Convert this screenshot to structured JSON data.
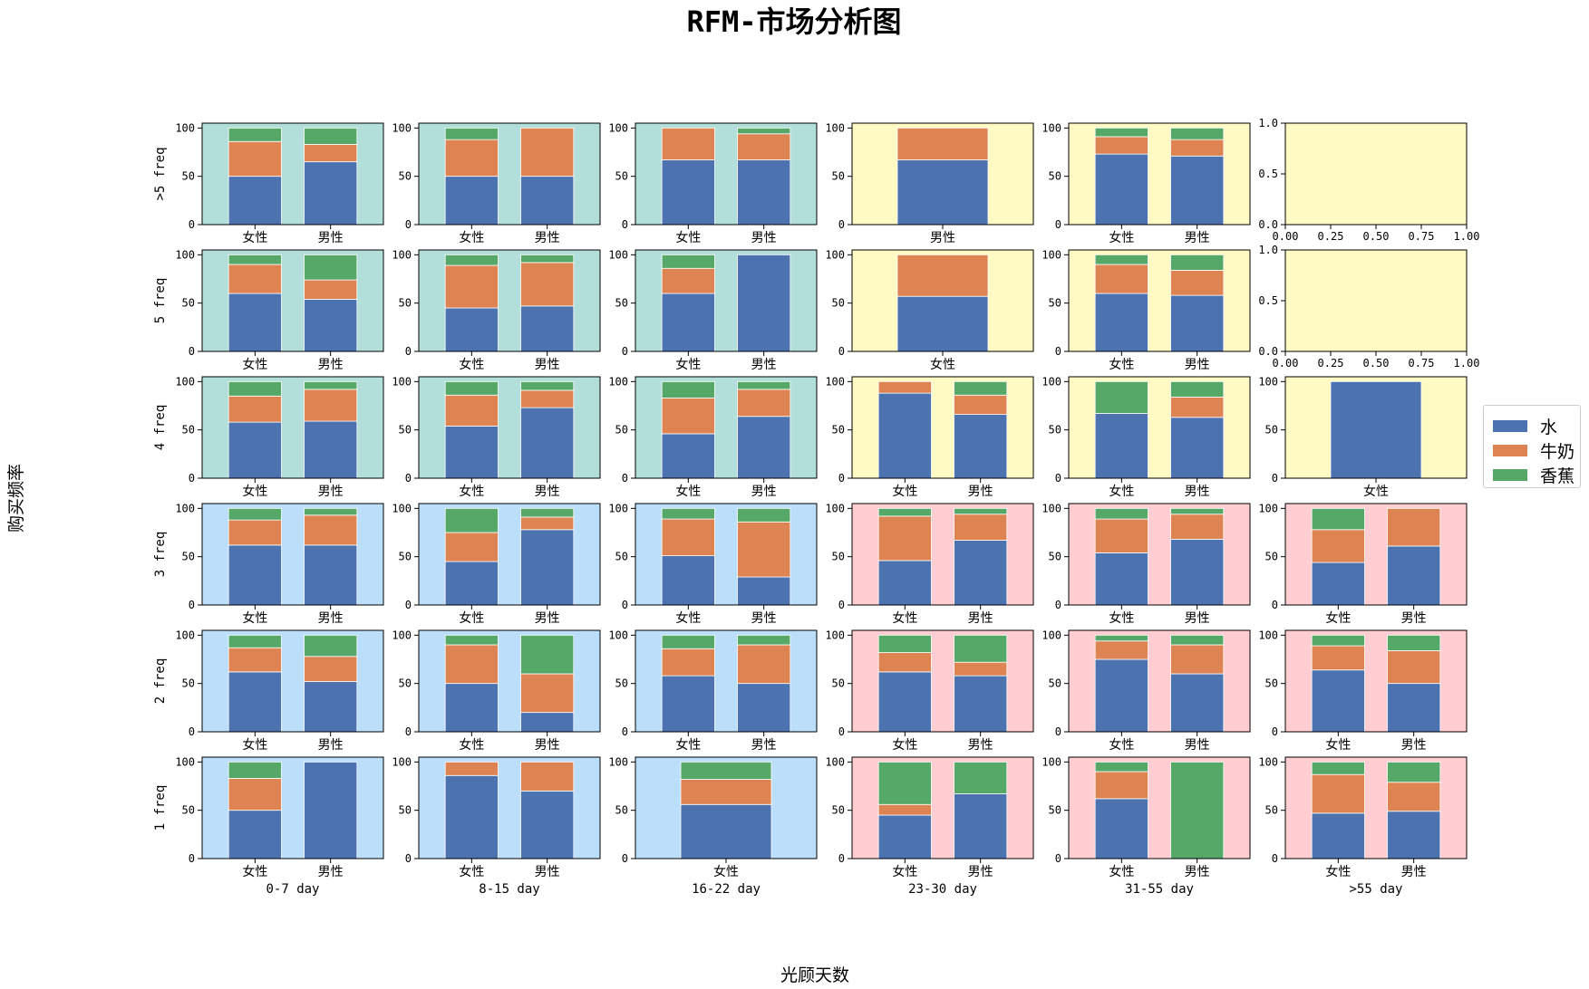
{
  "chart_data": {
    "type": "bar",
    "stacked": true,
    "title": "RFM-市场分析图",
    "xlabel": "光顾天数",
    "ylabel": "购买频率",
    "grid": false,
    "legend_position": "right",
    "series": [
      {
        "name": "水",
        "color": "#4c72b0"
      },
      {
        "name": "牛奶",
        "color": "#dd8452"
      },
      {
        "name": "香蕉",
        "color": "#55a868"
      }
    ],
    "recency_groups": [
      "0-7 day",
      "8-15 day",
      "16-22 day",
      "23-30 day",
      "31-55 day",
      ">55 day"
    ],
    "frequency_groups": [
      ">5 freq",
      "5 freq",
      "4 freq",
      "3 freq",
      "2 freq",
      "1 freq"
    ],
    "ylim": [
      0,
      105
    ],
    "yticks": [
      "0",
      "50",
      "100"
    ],
    "empty_ylim": [
      0,
      1
    ],
    "empty_yticks": [
      "0.0",
      "0.5",
      "1.0"
    ],
    "empty_xticks": [
      "0.00",
      "0.25",
      "0.50",
      "0.75",
      "1.00"
    ],
    "panel_colors": {
      "teal": "#b3dfdb",
      "yellow": "#fff9c4",
      "blue": "#bbdefb",
      "pink": "#ffcdd2"
    },
    "panels": [
      [
        {
          "bg": "teal",
          "bars": [
            {
              "label": "女性",
              "values": [
                50,
                36,
                14
              ]
            },
            {
              "label": "男性",
              "values": [
                65,
                18,
                17
              ]
            }
          ]
        },
        {
          "bg": "teal",
          "bars": [
            {
              "label": "女性",
              "values": [
                50,
                38,
                12
              ]
            },
            {
              "label": "男性",
              "values": [
                50,
                50,
                0
              ]
            }
          ]
        },
        {
          "bg": "teal",
          "bars": [
            {
              "label": "女性",
              "values": [
                67,
                33,
                0
              ]
            },
            {
              "label": "男性",
              "values": [
                67,
                27,
                6
              ]
            }
          ]
        },
        {
          "bg": "yellow",
          "bars": [
            {
              "label": "男性",
              "values": [
                67,
                33,
                0
              ]
            }
          ]
        },
        {
          "bg": "yellow",
          "bars": [
            {
              "label": "女性",
              "values": [
                73,
                18,
                9
              ]
            },
            {
              "label": "男性",
              "values": [
                71,
                17,
                12
              ]
            }
          ]
        },
        {
          "bg": "yellow",
          "empty": true,
          "bars": []
        }
      ],
      [
        {
          "bg": "teal",
          "bars": [
            {
              "label": "女性",
              "values": [
                60,
                30,
                10
              ]
            },
            {
              "label": "男性",
              "values": [
                54,
                20,
                26
              ]
            }
          ]
        },
        {
          "bg": "teal",
          "bars": [
            {
              "label": "女性",
              "values": [
                45,
                44,
                11
              ]
            },
            {
              "label": "男性",
              "values": [
                47,
                45,
                8
              ]
            }
          ]
        },
        {
          "bg": "teal",
          "bars": [
            {
              "label": "女性",
              "values": [
                60,
                26,
                14
              ]
            },
            {
              "label": "男性",
              "values": [
                100,
                0,
                0
              ]
            }
          ]
        },
        {
          "bg": "yellow",
          "bars": [
            {
              "label": "女性",
              "values": [
                57,
                43,
                0
              ]
            }
          ]
        },
        {
          "bg": "yellow",
          "bars": [
            {
              "label": "女性",
              "values": [
                60,
                30,
                10
              ]
            },
            {
              "label": "男性",
              "values": [
                58,
                26,
                16
              ]
            }
          ]
        },
        {
          "bg": "yellow",
          "empty": true,
          "bars": []
        }
      ],
      [
        {
          "bg": "teal",
          "bars": [
            {
              "label": "女性",
              "values": [
                58,
                27,
                15
              ]
            },
            {
              "label": "男性",
              "values": [
                59,
                33,
                8
              ]
            }
          ]
        },
        {
          "bg": "teal",
          "bars": [
            {
              "label": "女性",
              "values": [
                54,
                32,
                14
              ]
            },
            {
              "label": "男性",
              "values": [
                73,
                18,
                9
              ]
            }
          ]
        },
        {
          "bg": "teal",
          "bars": [
            {
              "label": "女性",
              "values": [
                46,
                37,
                17
              ]
            },
            {
              "label": "男性",
              "values": [
                64,
                28,
                8
              ]
            }
          ]
        },
        {
          "bg": "yellow",
          "bars": [
            {
              "label": "女性",
              "values": [
                88,
                12,
                0
              ]
            },
            {
              "label": "男性",
              "values": [
                66,
                20,
                14
              ]
            }
          ]
        },
        {
          "bg": "yellow",
          "bars": [
            {
              "label": "女性",
              "values": [
                67,
                0,
                33
              ]
            },
            {
              "label": "男性",
              "values": [
                63,
                21,
                16
              ]
            }
          ]
        },
        {
          "bg": "yellow",
          "bars": [
            {
              "label": "女性",
              "values": [
                100,
                0,
                0
              ]
            }
          ]
        }
      ],
      [
        {
          "bg": "blue",
          "bars": [
            {
              "label": "女性",
              "values": [
                62,
                26,
                12
              ]
            },
            {
              "label": "男性",
              "values": [
                62,
                31,
                7
              ]
            }
          ]
        },
        {
          "bg": "blue",
          "bars": [
            {
              "label": "女性",
              "values": [
                45,
                30,
                25
              ]
            },
            {
              "label": "男性",
              "values": [
                78,
                13,
                9
              ]
            }
          ]
        },
        {
          "bg": "blue",
          "bars": [
            {
              "label": "女性",
              "values": [
                51,
                38,
                11
              ]
            },
            {
              "label": "男性",
              "values": [
                29,
                57,
                14
              ]
            }
          ]
        },
        {
          "bg": "pink",
          "bars": [
            {
              "label": "女性",
              "values": [
                46,
                46,
                8
              ]
            },
            {
              "label": "男性",
              "values": [
                67,
                27,
                6
              ]
            }
          ]
        },
        {
          "bg": "pink",
          "bars": [
            {
              "label": "女性",
              "values": [
                54,
                35,
                11
              ]
            },
            {
              "label": "男性",
              "values": [
                68,
                26,
                6
              ]
            }
          ]
        },
        {
          "bg": "pink",
          "bars": [
            {
              "label": "女性",
              "values": [
                44,
                34,
                22
              ]
            },
            {
              "label": "男性",
              "values": [
                61,
                39,
                0
              ]
            }
          ]
        }
      ],
      [
        {
          "bg": "blue",
          "bars": [
            {
              "label": "女性",
              "values": [
                62,
                25,
                13
              ]
            },
            {
              "label": "男性",
              "values": [
                52,
                26,
                22
              ]
            }
          ]
        },
        {
          "bg": "blue",
          "bars": [
            {
              "label": "女性",
              "values": [
                50,
                40,
                10
              ]
            },
            {
              "label": "男性",
              "values": [
                20,
                40,
                40
              ]
            }
          ]
        },
        {
          "bg": "blue",
          "bars": [
            {
              "label": "女性",
              "values": [
                58,
                28,
                14
              ]
            },
            {
              "label": "男性",
              "values": [
                50,
                40,
                10
              ]
            }
          ]
        },
        {
          "bg": "pink",
          "bars": [
            {
              "label": "女性",
              "values": [
                62,
                20,
                18
              ]
            },
            {
              "label": "男性",
              "values": [
                58,
                14,
                28
              ]
            }
          ]
        },
        {
          "bg": "pink",
          "bars": [
            {
              "label": "女性",
              "values": [
                75,
                19,
                6
              ]
            },
            {
              "label": "男性",
              "values": [
                60,
                30,
                10
              ]
            }
          ]
        },
        {
          "bg": "pink",
          "bars": [
            {
              "label": "女性",
              "values": [
                64,
                25,
                11
              ]
            },
            {
              "label": "男性",
              "values": [
                50,
                34,
                16
              ]
            }
          ]
        }
      ],
      [
        {
          "bg": "blue",
          "bars": [
            {
              "label": "女性",
              "values": [
                50,
                33,
                17
              ]
            },
            {
              "label": "男性",
              "values": [
                100,
                0,
                0
              ]
            }
          ]
        },
        {
          "bg": "blue",
          "bars": [
            {
              "label": "女性",
              "values": [
                86,
                14,
                0
              ]
            },
            {
              "label": "男性",
              "values": [
                70,
                30,
                0
              ]
            }
          ]
        },
        {
          "bg": "blue",
          "bars": [
            {
              "label": "女性",
              "values": [
                56,
                26,
                18
              ]
            }
          ]
        },
        {
          "bg": "pink",
          "bars": [
            {
              "label": "女性",
              "values": [
                45,
                11,
                44
              ]
            },
            {
              "label": "男性",
              "values": [
                67,
                0,
                33
              ]
            }
          ]
        },
        {
          "bg": "pink",
          "bars": [
            {
              "label": "女性",
              "values": [
                62,
                28,
                10
              ]
            },
            {
              "label": "男性",
              "values": [
                0,
                0,
                100
              ]
            }
          ]
        },
        {
          "bg": "pink",
          "bars": [
            {
              "label": "女性",
              "values": [
                47,
                40,
                13
              ]
            },
            {
              "label": "男性",
              "values": [
                49,
                30,
                21
              ]
            }
          ]
        }
      ]
    ]
  }
}
